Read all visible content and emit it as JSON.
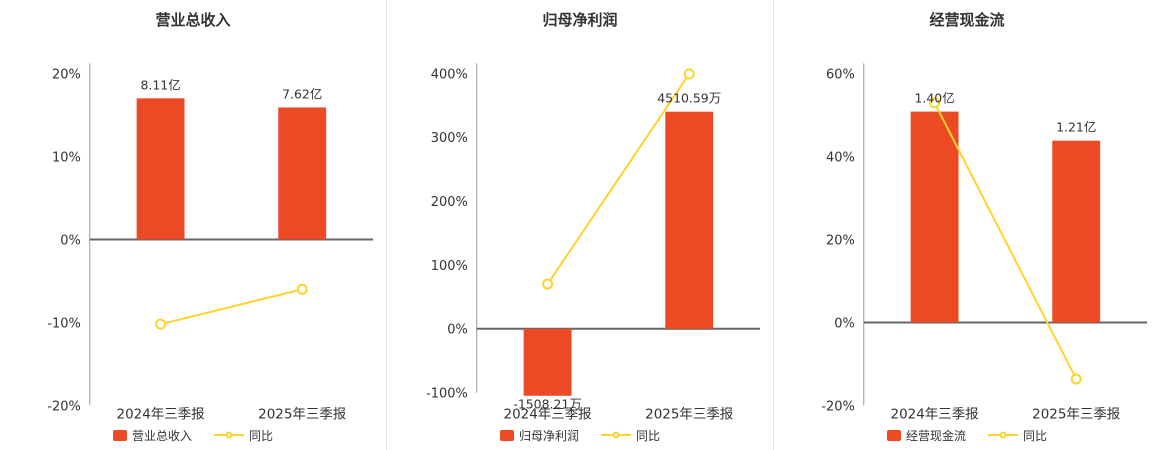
{
  "colors": {
    "background": "#ffffff",
    "bar": "#ec4a24",
    "line": "#ffd42a",
    "marker_fill": "#ffffff",
    "axis_line": "#999999",
    "zero_line": "#666666",
    "text": "#333333",
    "divider": "#e0e0e0"
  },
  "chart_data": [
    {
      "type": "bar",
      "overlay": "line",
      "title": "营业总收入",
      "categories": [
        "2024年三季报",
        "2025年三季报"
      ],
      "ylim": [
        -20,
        20
      ],
      "yticks": [
        20,
        10,
        0,
        -10,
        -20
      ],
      "grid": false,
      "legend_position": "bottom",
      "bar_series": {
        "name": "营业总收入",
        "unit": "亿",
        "values": [
          8.11,
          7.62
        ],
        "value_labels": [
          "8.11亿",
          "7.62亿"
        ],
        "plot_pct": [
          17.0,
          15.9
        ]
      },
      "line_series": {
        "name": "同比",
        "values_pct": [
          -10.2,
          -6.0
        ]
      }
    },
    {
      "type": "bar",
      "overlay": "line",
      "title": "归母净利润",
      "categories": [
        "2024年三季报",
        "2025年三季报"
      ],
      "ylim": [
        -100,
        400
      ],
      "yticks": [
        400,
        300,
        200,
        100,
        0,
        -100
      ],
      "grid": false,
      "legend_position": "bottom",
      "bar_series": {
        "name": "归母净利润",
        "unit": "万",
        "values": [
          -1508.21,
          4510.59
        ],
        "value_labels": [
          "-1508.21万",
          "4510.59万"
        ],
        "plot_pct": [
          -105,
          340
        ]
      },
      "line_series": {
        "name": "同比",
        "values_pct": [
          70,
          399.1
        ]
      }
    },
    {
      "type": "bar",
      "overlay": "line",
      "title": "经营现金流",
      "categories": [
        "2024年三季报",
        "2025年三季报"
      ],
      "ylim": [
        -20,
        60
      ],
      "yticks": [
        60,
        40,
        20,
        0,
        -20
      ],
      "grid": false,
      "legend_position": "bottom",
      "bar_series": {
        "name": "经营现金流",
        "unit": "亿",
        "values": [
          1.4,
          1.21
        ],
        "value_labels": [
          "1.40亿",
          "1.21亿"
        ],
        "plot_pct": [
          50.8,
          43.8
        ]
      },
      "line_series": {
        "name": "同比",
        "values_pct": [
          52.9,
          -13.6
        ]
      }
    }
  ]
}
